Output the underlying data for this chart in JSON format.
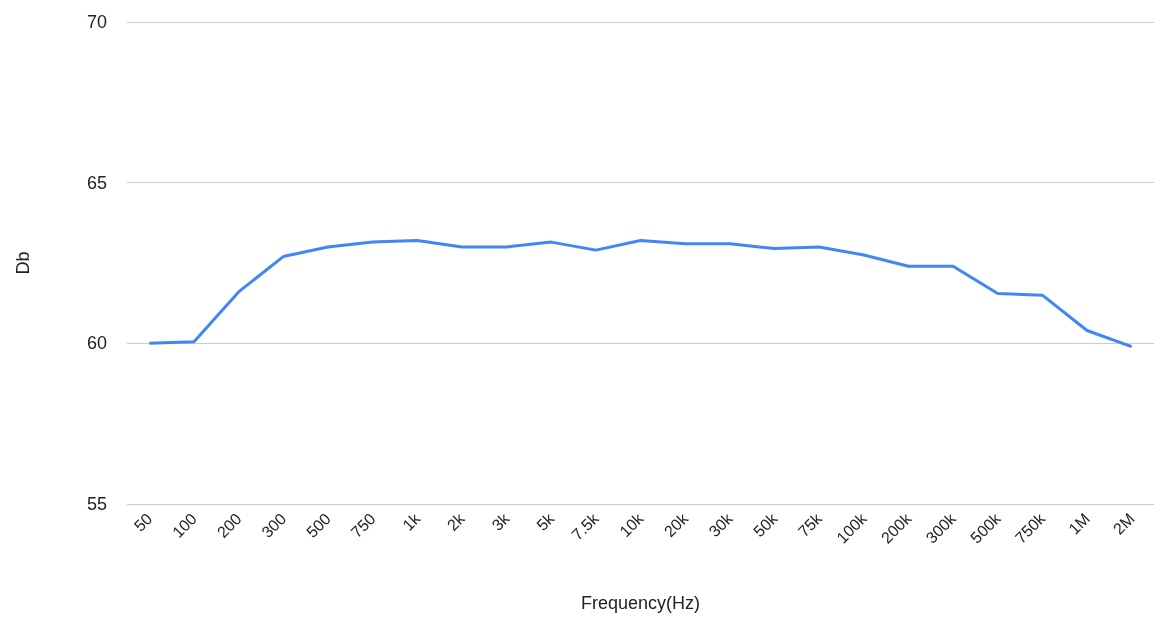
{
  "chart_data": {
    "type": "line",
    "xlabel": "Frequency(Hz)",
    "ylabel": "Db",
    "categories": [
      "50",
      "100",
      "200",
      "300",
      "500",
      "750",
      "1k",
      "2k",
      "3k",
      "5k",
      "7.5k",
      "10k",
      "20k",
      "30k",
      "50k",
      "75k",
      "100k",
      "200k",
      "300k",
      "500k",
      "750k",
      "1M",
      "2M"
    ],
    "series": [
      {
        "color": "#4285f4",
        "values": [
          60.0,
          60.05,
          61.6,
          62.7,
          63.0,
          63.15,
          63.2,
          63.0,
          63.0,
          63.15,
          62.9,
          63.2,
          63.1,
          63.1,
          62.95,
          63.0,
          62.75,
          62.4,
          62.4,
          61.55,
          61.5,
          60.4,
          59.9
        ]
      }
    ],
    "ylim": [
      55,
      70
    ],
    "yticks": [
      55,
      60,
      65,
      70
    ],
    "grid": "y",
    "marker": "none",
    "line_style": "solid"
  }
}
